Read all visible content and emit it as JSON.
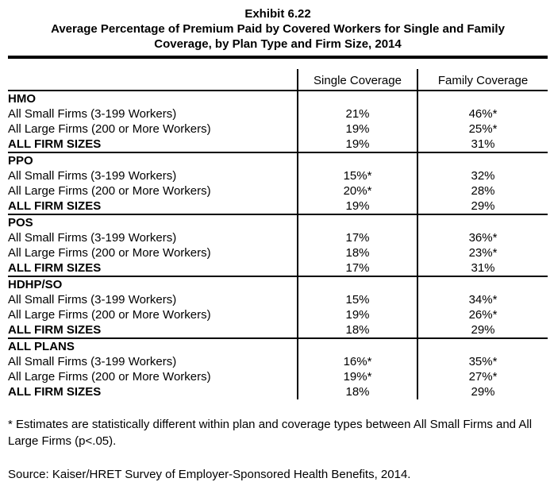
{
  "header": {
    "exhibit": "Exhibit 6.22",
    "title_line1": "Average Percentage of Premium Paid by Covered Workers for Single and Family",
    "title_line2": "Coverage, by Plan Type and Firm Size, 2014"
  },
  "table": {
    "columns": [
      "Single Coverage",
      "Family Coverage"
    ],
    "sections": [
      {
        "plan": "HMO",
        "rows": [
          {
            "label": "All Small Firms (3-199 Workers)",
            "single": "21%",
            "family": "46%*",
            "emphasis": false
          },
          {
            "label": "All Large Firms (200 or More Workers)",
            "single": "19%",
            "family": "25%*",
            "emphasis": false
          },
          {
            "label": "ALL FIRM SIZES",
            "single": "19%",
            "family": "31%",
            "emphasis": true
          }
        ]
      },
      {
        "plan": "PPO",
        "rows": [
          {
            "label": "All Small Firms (3-199 Workers)",
            "single": "15%*",
            "family": "32%",
            "emphasis": false
          },
          {
            "label": "All Large Firms (200 or More Workers)",
            "single": "20%*",
            "family": "28%",
            "emphasis": false
          },
          {
            "label": "ALL FIRM SIZES",
            "single": "19%",
            "family": "29%",
            "emphasis": true
          }
        ]
      },
      {
        "plan": "POS",
        "rows": [
          {
            "label": "All Small Firms (3-199 Workers)",
            "single": "17%",
            "family": "36%*",
            "emphasis": false
          },
          {
            "label": "All Large Firms (200 or More Workers)",
            "single": "18%",
            "family": "23%*",
            "emphasis": false
          },
          {
            "label": "ALL FIRM SIZES",
            "single": "17%",
            "family": "31%",
            "emphasis": true
          }
        ]
      },
      {
        "plan": "HDHP/SO",
        "rows": [
          {
            "label": "All Small Firms (3-199 Workers)",
            "single": "15%",
            "family": "34%*",
            "emphasis": false
          },
          {
            "label": "All Large Firms (200 or More Workers)",
            "single": "19%",
            "family": "26%*",
            "emphasis": false
          },
          {
            "label": "ALL FIRM SIZES",
            "single": "18%",
            "family": "29%",
            "emphasis": true
          }
        ]
      },
      {
        "plan": "ALL PLANS",
        "rows": [
          {
            "label": "All Small Firms (3-199 Workers)",
            "single": "16%*",
            "family": "35%*",
            "emphasis": false
          },
          {
            "label": "All Large Firms (200 or More Workers)",
            "single": "19%*",
            "family": "27%*",
            "emphasis": false
          },
          {
            "label": "ALL FIRM SIZES",
            "single": "18%",
            "family": "29%",
            "emphasis": true
          }
        ]
      }
    ]
  },
  "footnote": "* Estimates are statistically different within plan and coverage types between All Small Firms and All Large Firms (p<.05).",
  "source": "Source: Kaiser/HRET Survey of Employer-Sponsored Health Benefits, 2014.",
  "colors": {
    "text": "#000000",
    "background": "#ffffff",
    "rule": "#000000"
  }
}
